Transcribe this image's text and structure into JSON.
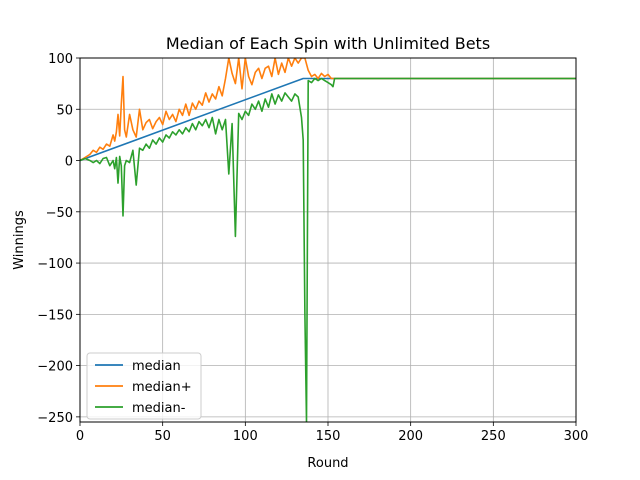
{
  "chart_data": {
    "type": "line",
    "title": "Median of Each Spin with Unlimited Bets",
    "xlabel": "Round",
    "ylabel": "Winnings",
    "xlim": [
      0,
      300
    ],
    "ylim": [
      -255,
      100
    ],
    "xticks": [
      0,
      50,
      100,
      150,
      200,
      250,
      300
    ],
    "yticks": [
      100,
      50,
      0,
      -50,
      -100,
      -150,
      -200,
      -250
    ],
    "ytick_labels": [
      "100",
      "50",
      "0",
      "−50",
      "−100",
      "−150",
      "−200",
      "−250"
    ],
    "grid": true,
    "legend": "lower-left",
    "series": [
      {
        "name": "median",
        "color": "#1f77b4",
        "points": [
          [
            0,
            0
          ],
          [
            135,
            80
          ],
          [
            300,
            80
          ]
        ]
      },
      {
        "name": "median+",
        "color": "#ff7f0e",
        "points": [
          [
            0,
            0
          ],
          [
            3,
            3
          ],
          [
            6,
            6
          ],
          [
            8,
            10
          ],
          [
            10,
            8
          ],
          [
            12,
            13
          ],
          [
            14,
            11
          ],
          [
            16,
            16
          ],
          [
            18,
            14
          ],
          [
            20,
            25
          ],
          [
            21,
            19
          ],
          [
            22,
            28
          ],
          [
            23,
            45
          ],
          [
            24,
            24
          ],
          [
            25,
            55
          ],
          [
            26,
            82
          ],
          [
            27,
            30
          ],
          [
            28,
            23
          ],
          [
            30,
            45
          ],
          [
            32,
            30
          ],
          [
            34,
            23
          ],
          [
            36,
            50
          ],
          [
            38,
            30
          ],
          [
            40,
            37
          ],
          [
            42,
            40
          ],
          [
            44,
            31
          ],
          [
            46,
            38
          ],
          [
            48,
            42
          ],
          [
            50,
            35
          ],
          [
            52,
            48
          ],
          [
            54,
            40
          ],
          [
            56,
            45
          ],
          [
            58,
            38
          ],
          [
            60,
            50
          ],
          [
            62,
            44
          ],
          [
            64,
            55
          ],
          [
            66,
            44
          ],
          [
            68,
            56
          ],
          [
            70,
            50
          ],
          [
            72,
            58
          ],
          [
            74,
            54
          ],
          [
            76,
            66
          ],
          [
            78,
            57
          ],
          [
            80,
            65
          ],
          [
            82,
            60
          ],
          [
            84,
            72
          ],
          [
            86,
            63
          ],
          [
            88,
            80
          ],
          [
            90,
            100
          ],
          [
            92,
            85
          ],
          [
            94,
            75
          ],
          [
            96,
            100
          ],
          [
            98,
            70
          ],
          [
            100,
            100
          ],
          [
            102,
            82
          ],
          [
            104,
            74
          ],
          [
            106,
            86
          ],
          [
            108,
            90
          ],
          [
            110,
            80
          ],
          [
            112,
            90
          ],
          [
            114,
            92
          ],
          [
            116,
            82
          ],
          [
            118,
            100
          ],
          [
            120,
            84
          ],
          [
            122,
            95
          ],
          [
            124,
            86
          ],
          [
            126,
            100
          ],
          [
            128,
            92
          ],
          [
            130,
            100
          ],
          [
            132,
            95
          ],
          [
            134,
            100
          ],
          [
            136,
            100
          ],
          [
            138,
            88
          ],
          [
            140,
            82
          ],
          [
            142,
            84
          ],
          [
            144,
            80
          ],
          [
            146,
            85
          ],
          [
            148,
            82
          ],
          [
            150,
            84
          ],
          [
            152,
            80
          ],
          [
            155,
            80
          ],
          [
            300,
            80
          ]
        ]
      },
      {
        "name": "median-",
        "color": "#2ca02c",
        "points": [
          [
            0,
            0
          ],
          [
            3,
            2
          ],
          [
            6,
            0
          ],
          [
            8,
            -2
          ],
          [
            10,
            0
          ],
          [
            12,
            -3
          ],
          [
            14,
            2
          ],
          [
            16,
            3
          ],
          [
            18,
            -5
          ],
          [
            20,
            0
          ],
          [
            21,
            -8
          ],
          [
            22,
            3
          ],
          [
            23,
            -22
          ],
          [
            24,
            4
          ],
          [
            25,
            -5
          ],
          [
            26,
            -54
          ],
          [
            27,
            -5
          ],
          [
            28,
            0
          ],
          [
            30,
            -2
          ],
          [
            32,
            10
          ],
          [
            34,
            -24
          ],
          [
            36,
            12
          ],
          [
            38,
            10
          ],
          [
            40,
            16
          ],
          [
            42,
            12
          ],
          [
            44,
            20
          ],
          [
            46,
            16
          ],
          [
            48,
            22
          ],
          [
            50,
            18
          ],
          [
            52,
            25
          ],
          [
            54,
            22
          ],
          [
            56,
            28
          ],
          [
            58,
            25
          ],
          [
            60,
            30
          ],
          [
            62,
            26
          ],
          [
            64,
            32
          ],
          [
            66,
            28
          ],
          [
            68,
            36
          ],
          [
            70,
            30
          ],
          [
            72,
            38
          ],
          [
            74,
            34
          ],
          [
            76,
            40
          ],
          [
            78,
            32
          ],
          [
            80,
            42
          ],
          [
            82,
            26
          ],
          [
            84,
            40
          ],
          [
            86,
            30
          ],
          [
            88,
            40
          ],
          [
            90,
            -13
          ],
          [
            92,
            36
          ],
          [
            94,
            -74
          ],
          [
            96,
            46
          ],
          [
            98,
            40
          ],
          [
            100,
            48
          ],
          [
            102,
            44
          ],
          [
            104,
            55
          ],
          [
            106,
            50
          ],
          [
            108,
            58
          ],
          [
            110,
            48
          ],
          [
            112,
            60
          ],
          [
            114,
            52
          ],
          [
            116,
            65
          ],
          [
            118,
            55
          ],
          [
            120,
            64
          ],
          [
            122,
            58
          ],
          [
            124,
            66
          ],
          [
            126,
            62
          ],
          [
            128,
            58
          ],
          [
            130,
            65
          ],
          [
            132,
            62
          ],
          [
            134,
            42
          ],
          [
            135,
            20
          ],
          [
            136,
            -150
          ],
          [
            137,
            -255
          ],
          [
            138,
            78
          ],
          [
            140,
            76
          ],
          [
            142,
            80
          ],
          [
            144,
            78
          ],
          [
            146,
            80
          ],
          [
            148,
            78
          ],
          [
            150,
            76
          ],
          [
            152,
            74
          ],
          [
            153,
            72
          ],
          [
            154,
            80
          ],
          [
            300,
            80
          ]
        ]
      }
    ]
  }
}
